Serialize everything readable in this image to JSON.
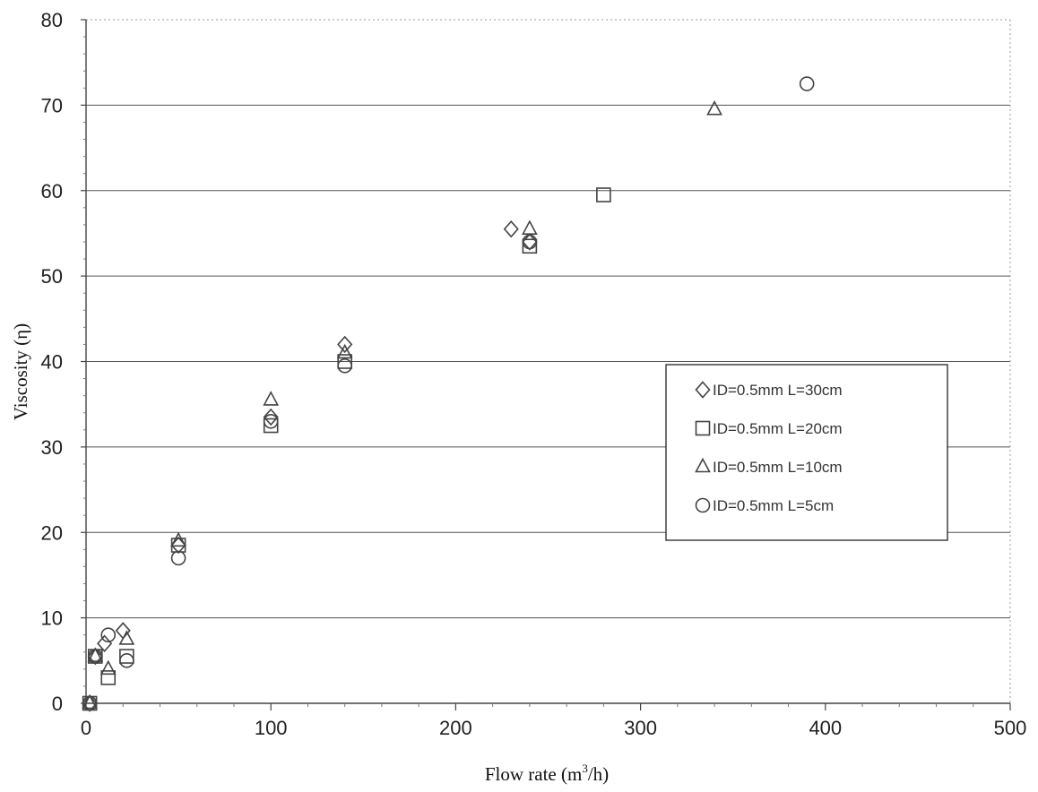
{
  "chart_data": {
    "type": "scatter",
    "xlabel": "Flow rate (m",
    "xlabel_sup": "3",
    "xlabel_tail": "/h)",
    "ylabel": "Viscosity  (η)",
    "xlim": [
      0,
      500
    ],
    "ylim": [
      0,
      80
    ],
    "xticks": [
      0,
      100,
      200,
      300,
      400,
      500
    ],
    "yticks": [
      0,
      10,
      20,
      30,
      40,
      50,
      60,
      70,
      80
    ],
    "grid": "horizontal",
    "legend_position": "center-right",
    "series": [
      {
        "name": "ID=0.5mm L=30cm",
        "marker": "diamond",
        "points": [
          [
            2,
            0
          ],
          [
            5,
            5.5
          ],
          [
            10,
            7
          ],
          [
            20,
            8.5
          ],
          [
            50,
            18.5
          ],
          [
            100,
            33.5
          ],
          [
            140,
            42
          ],
          [
            230,
            55.5
          ],
          [
            240,
            54
          ]
        ]
      },
      {
        "name": "ID=0.5mm L=20cm",
        "marker": "square",
        "points": [
          [
            2,
            0
          ],
          [
            5,
            5.5
          ],
          [
            12,
            3
          ],
          [
            22,
            5.5
          ],
          [
            50,
            18.5
          ],
          [
            100,
            32.5
          ],
          [
            140,
            40
          ],
          [
            240,
            53.5
          ],
          [
            280,
            59.5
          ]
        ]
      },
      {
        "name": "ID=0.5mm L=10cm",
        "marker": "triangle",
        "points": [
          [
            2,
            0
          ],
          [
            5,
            5.5
          ],
          [
            12,
            4
          ],
          [
            22,
            7.5
          ],
          [
            50,
            19
          ],
          [
            100,
            35.5
          ],
          [
            140,
            41
          ],
          [
            240,
            55.5
          ],
          [
            340,
            69.5
          ]
        ]
      },
      {
        "name": "ID=0.5mm L=5cm",
        "marker": "circle",
        "points": [
          [
            2,
            0
          ],
          [
            5,
            5.5
          ],
          [
            12,
            8
          ],
          [
            22,
            5
          ],
          [
            50,
            17
          ],
          [
            100,
            33
          ],
          [
            140,
            39.5
          ],
          [
            240,
            54
          ],
          [
            390,
            72.5
          ]
        ]
      }
    ]
  }
}
